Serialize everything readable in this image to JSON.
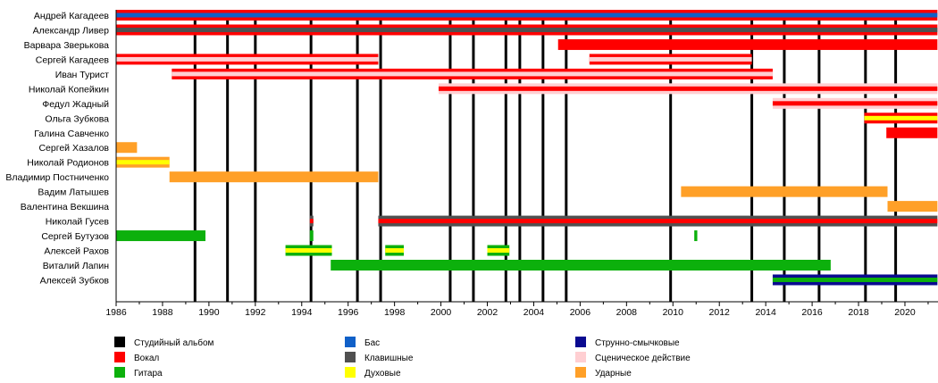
{
  "chart_data": {
    "type": "timeline",
    "title": "",
    "xlabel": "",
    "ylabel": "",
    "xlim": [
      1986,
      2021.4
    ],
    "x_ticks": [
      1986,
      1988,
      1990,
      1992,
      1994,
      1996,
      1998,
      2000,
      2002,
      2004,
      2006,
      2008,
      2010,
      2012,
      2014,
      2016,
      2018,
      2020
    ],
    "grid": false,
    "legend_position": "bottom",
    "colors": {
      "studio": "#000000",
      "vocal": "#ff0000",
      "guitar": "#0cb00c",
      "bass": "#1060c8",
      "keys": "#505050",
      "wind": "#ffff00",
      "strings": "#0a0a90",
      "stage": "#ffcfd2",
      "drums": "#ffa028"
    },
    "legend": [
      {
        "key": "studio",
        "label": "Студийный альбом"
      },
      {
        "key": "vocal",
        "label": "Вокал"
      },
      {
        "key": "guitar",
        "label": "Гитара"
      },
      {
        "key": "bass",
        "label": "Бас"
      },
      {
        "key": "keys",
        "label": "Клавишные"
      },
      {
        "key": "wind",
        "label": "Духовые"
      },
      {
        "key": "strings",
        "label": "Струнно-смычковые"
      },
      {
        "key": "stage",
        "label": "Сценическое действие"
      },
      {
        "key": "drums",
        "label": "Ударные"
      }
    ],
    "studio_albums": [
      1989.4,
      1990.8,
      1992.0,
      1994.4,
      1996.4,
      1997.4,
      2000.4,
      2001.4,
      2002.8,
      2003.4,
      2004.4,
      2005.4,
      2009.9,
      2013.4,
      2014.8,
      2016.3,
      2018.3,
      2019.6
    ],
    "members": [
      {
        "name": "Андрей Кагадеев",
        "periods": [
          {
            "start": 1986,
            "end": 2021.4,
            "outer": "vocal",
            "inner": "bass"
          }
        ]
      },
      {
        "name": "Александр Ливер",
        "periods": [
          {
            "start": 1986,
            "end": 2021.4,
            "outer": "vocal",
            "inner": "keys"
          }
        ]
      },
      {
        "name": "Варвара Зверькова",
        "periods": [
          {
            "start": 2005.05,
            "end": 2021.4,
            "outer": "vocal"
          }
        ]
      },
      {
        "name": "Сергей Кагадеев",
        "periods": [
          {
            "start": 1986,
            "end": 1997.3,
            "outer": "vocal",
            "inner": "stage"
          },
          {
            "start": 2006.4,
            "end": 2013.4,
            "outer": "vocal",
            "inner": "stage"
          }
        ]
      },
      {
        "name": "Иван Турист",
        "periods": [
          {
            "start": 1988.4,
            "end": 2014.3,
            "outer": "vocal",
            "inner": "stage"
          }
        ]
      },
      {
        "name": "Николай Копейкин",
        "periods": [
          {
            "start": 1999.9,
            "end": 2021.4,
            "outer": "stage",
            "inner": "vocal"
          }
        ]
      },
      {
        "name": "Федул Жадный",
        "periods": [
          {
            "start": 2014.3,
            "end": 2021.4,
            "outer": "stage",
            "inner": "vocal"
          }
        ]
      },
      {
        "name": "Ольга Зубкова",
        "periods": [
          {
            "start": 2018.25,
            "end": 2021.4,
            "outer": "vocal",
            "inner": "wind"
          }
        ]
      },
      {
        "name": "Галина Савченко",
        "periods": [
          {
            "start": 2019.2,
            "end": 2021.4,
            "outer": "vocal"
          }
        ]
      },
      {
        "name": "Сергей Хазалов",
        "periods": [
          {
            "start": 1986,
            "end": 1986.9,
            "outer": "drums"
          }
        ]
      },
      {
        "name": "Николай Родионов",
        "periods": [
          {
            "start": 1986,
            "end": 1988.3,
            "outer": "drums",
            "inner": "wind"
          }
        ]
      },
      {
        "name": "Владимир Постниченко",
        "periods": [
          {
            "start": 1988.3,
            "end": 1997.3,
            "outer": "drums"
          }
        ]
      },
      {
        "name": "Вадим Латышев",
        "periods": [
          {
            "start": 2010.35,
            "end": 2019.25,
            "outer": "drums"
          }
        ]
      },
      {
        "name": "Валентина Векшина",
        "periods": [
          {
            "start": 2019.25,
            "end": 2021.4,
            "outer": "drums"
          }
        ]
      },
      {
        "name": "Николай Гусев",
        "periods": [
          {
            "start": 1994.35,
            "end": 1994.5,
            "outer": "keys",
            "inner": "vocal"
          },
          {
            "start": 1997.3,
            "end": 2021.4,
            "outer": "keys",
            "inner": "vocal"
          }
        ]
      },
      {
        "name": "Сергей Бутузов",
        "periods": [
          {
            "start": 1986,
            "end": 1989.85,
            "outer": "guitar"
          },
          {
            "start": 1994.35,
            "end": 1994.5,
            "outer": "guitar"
          },
          {
            "start": 2010.92,
            "end": 2011.05,
            "outer": "guitar"
          }
        ]
      },
      {
        "name": "Алексей Рахов",
        "periods": [
          {
            "start": 1993.3,
            "end": 1995.3,
            "outer": "guitar",
            "inner": "wind"
          },
          {
            "start": 1997.6,
            "end": 1998.4,
            "outer": "guitar",
            "inner": "wind"
          },
          {
            "start": 2002.0,
            "end": 2002.95,
            "outer": "guitar",
            "inner": "wind"
          }
        ]
      },
      {
        "name": "Виталий Лапин",
        "periods": [
          {
            "start": 1995.25,
            "end": 2016.8,
            "outer": "guitar"
          }
        ]
      },
      {
        "name": "Алексей Зубков",
        "periods": [
          {
            "start": 2014.3,
            "end": 2021.4,
            "outer": "strings",
            "inner": "guitar"
          }
        ]
      }
    ]
  }
}
